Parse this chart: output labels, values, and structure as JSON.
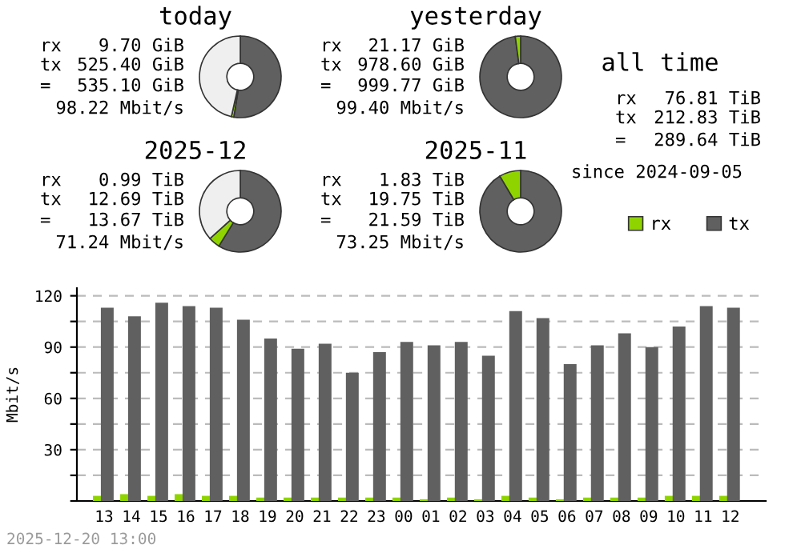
{
  "chart_data": [
    {
      "type": "donut",
      "title": "today",
      "annotations": [
        "rx\t9.70 GiB",
        "tx\t525.40 GiB",
        "=\t535.10 GiB",
        "98.22 Mbit/s"
      ],
      "categories": [
        null,
        null,
        null
      ],
      "values": [
        52.55,
        0.97,
        46.48
      ],
      "colors": [
        "#606060",
        "#8fd400",
        "#efefef"
      ]
    },
    {
      "type": "donut",
      "title": "yesterday",
      "annotations": [
        "rx\t21.17 GiB",
        "tx\t978.60 GiB",
        "=\t999.77 GiB",
        "99.40 Mbit/s"
      ],
      "categories": [
        null,
        null
      ],
      "values": [
        97.88,
        2.12
      ],
      "colors": [
        "#606060",
        "#8fd400"
      ]
    },
    {
      "type": "other",
      "title": "all time",
      "annotations": [
        "rx\t76.81 TiB",
        "tx\t212.83 TiB",
        "=\t289.64 TiB",
        "since 2024-09-05"
      ]
    },
    {
      "type": "donut",
      "title": "2025-12",
      "annotations": [
        "rx\t0.99 TiB",
        "tx\t12.69 TiB",
        "=\t13.67 TiB",
        "71.24 Mbit/s"
      ],
      "categories": [
        null,
        null,
        null
      ],
      "values": [
        58.78,
        4.59,
        36.63
      ],
      "colors": [
        "#606060",
        "#8fd400",
        "#efefef"
      ]
    },
    {
      "type": "donut",
      "title": "2025-11",
      "annotations": [
        "rx\t1.83 TiB",
        "tx\t19.75 TiB",
        "=\t21.59 TiB",
        "73.25 Mbit/s"
      ],
      "categories": [
        null,
        null
      ],
      "values": [
        91.52,
        8.48
      ],
      "colors": [
        "#606060",
        "#8fd400"
      ]
    },
    {
      "type": "bar",
      "ylabel": "Mbit/s",
      "annotations": [
        "2025-12-20 13:00"
      ],
      "legend": "top right",
      "grid": "y",
      "categories": [
        "13",
        "14",
        "15",
        "16",
        "17",
        "18",
        "19",
        "20",
        "21",
        "22",
        "23",
        "00",
        "01",
        "02",
        "03",
        "04",
        "05",
        "06",
        "07",
        "08",
        "09",
        "10",
        "11",
        "12"
      ],
      "ylim": [
        0,
        124.5
      ],
      "yticks": [
        {
          "value": 0,
          "label": null
        },
        {
          "value": 15,
          "label": null
        },
        30,
        {
          "value": 45,
          "label": null
        },
        60,
        {
          "value": 75,
          "label": null
        },
        90,
        {
          "value": 105,
          "label": null
        },
        120
      ],
      "series": [
        {
          "name": "rx",
          "color": "#8fd400",
          "values": [
            3,
            4,
            3,
            4,
            3,
            3,
            2,
            2,
            2,
            2,
            2,
            2,
            1,
            2,
            1,
            3,
            2,
            1,
            2,
            2,
            2,
            3,
            3,
            3
          ]
        },
        {
          "name": "tx",
          "color": "#606060",
          "values": [
            113,
            108,
            116,
            114,
            113,
            106,
            95,
            89,
            92,
            75,
            87,
            93,
            91,
            93,
            85,
            111,
            107,
            80,
            91,
            98,
            90,
            102,
            114,
            113
          ]
        }
      ]
    }
  ]
}
